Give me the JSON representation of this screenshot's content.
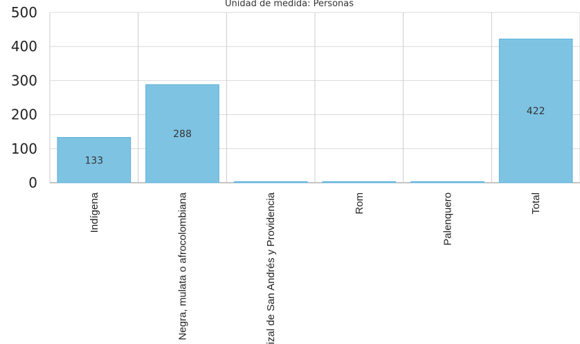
{
  "chart_data": {
    "type": "bar",
    "subtitle": "Unidad de medida: Personas",
    "categories": [
      "Indígena",
      "Negra, mulata o afrocolombiana",
      "Raizal de San Andrés y Providencia",
      "Rom",
      "Palenquero",
      "Total"
    ],
    "values": [
      133,
      288,
      1,
      0,
      0,
      422
    ],
    "data_labels": [
      "133",
      "288",
      "",
      "",
      "",
      "422"
    ],
    "ylim": [
      0,
      500
    ],
    "yticks": [
      "0",
      "100",
      "200",
      "300",
      "400",
      "500"
    ],
    "grid": true,
    "legend": "none",
    "colors": {
      "bar_fill": "#7fc3e3",
      "bar_stroke": "#5aaed6"
    }
  }
}
